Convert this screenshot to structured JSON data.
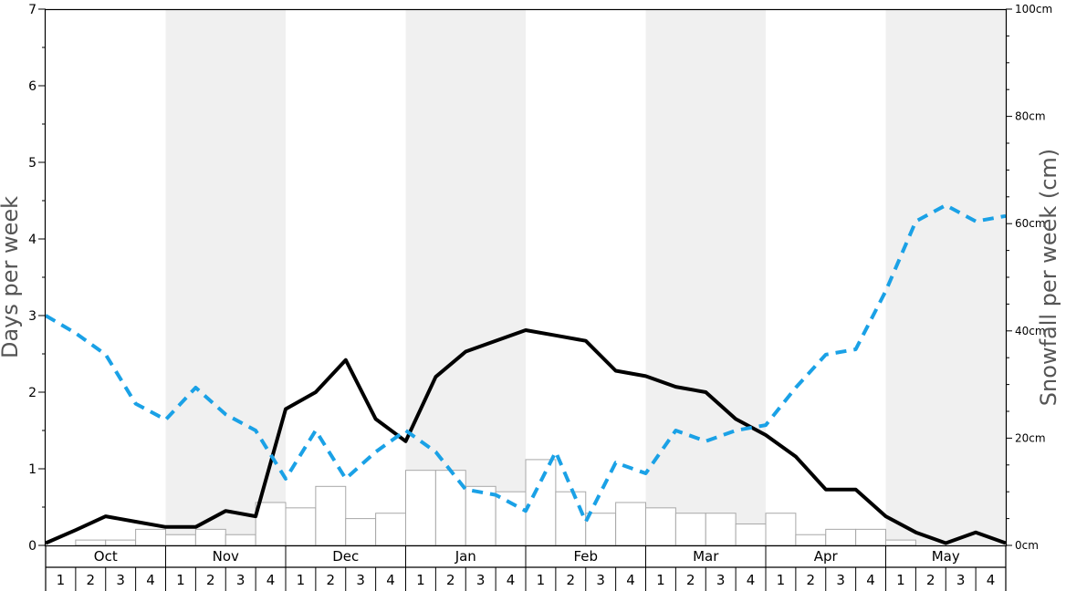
{
  "chart_data": {
    "type": "bar",
    "ylabel": "Days per week",
    "ylabel_right": "Snowfall per week (cm)",
    "ylim": [
      0,
      7
    ],
    "ylim_right": [
      0,
      100
    ],
    "yticks_left": [
      "0",
      "1",
      "2",
      "3",
      "4",
      "5",
      "6",
      "7"
    ],
    "yticks_right": [
      "0cm",
      "20cm",
      "40cm",
      "60cm",
      "80cm",
      "100cm"
    ],
    "months": [
      "Oct",
      "Nov",
      "Dec",
      "Jan",
      "Feb",
      "Mar",
      "Apr",
      "May"
    ],
    "week_labels": [
      "1",
      "2",
      "3",
      "4"
    ],
    "grid": false,
    "bars": {
      "name": "Snowfall per week",
      "values": [
        0,
        1,
        1,
        3,
        2,
        3,
        2,
        8,
        7,
        11,
        5,
        6,
        14,
        14,
        11,
        10,
        16,
        10,
        6,
        8,
        7,
        6,
        6,
        4,
        6,
        2,
        3,
        3,
        1,
        0,
        0,
        0
      ]
    },
    "series": [
      {
        "style": "solid",
        "color": "#000000",
        "axis": "left",
        "values": [
          0.03,
          0.2,
          0.38,
          0.31,
          0.24,
          0.24,
          0.45,
          0.38,
          1.78,
          2.0,
          2.42,
          1.65,
          1.36,
          2.2,
          2.53,
          2.67,
          2.81,
          2.74,
          2.67,
          2.28,
          2.21,
          2.07,
          2.0,
          1.65,
          1.44,
          1.16,
          0.73,
          0.73,
          0.38,
          0.17,
          0.03,
          0.17,
          0.03
        ]
      },
      {
        "style": "dashed",
        "color": "#1aa1e6",
        "axis": "left",
        "values": [
          3.0,
          2.77,
          2.49,
          1.85,
          1.64,
          2.06,
          1.71,
          1.5,
          0.87,
          1.5,
          0.87,
          1.22,
          1.5,
          1.22,
          0.73,
          0.66,
          0.45,
          1.22,
          0.31,
          1.08,
          0.94,
          1.5,
          1.36,
          1.5,
          1.57,
          2.06,
          2.49,
          2.56,
          3.32,
          4.23,
          4.44,
          4.23,
          4.3
        ]
      }
    ]
  }
}
